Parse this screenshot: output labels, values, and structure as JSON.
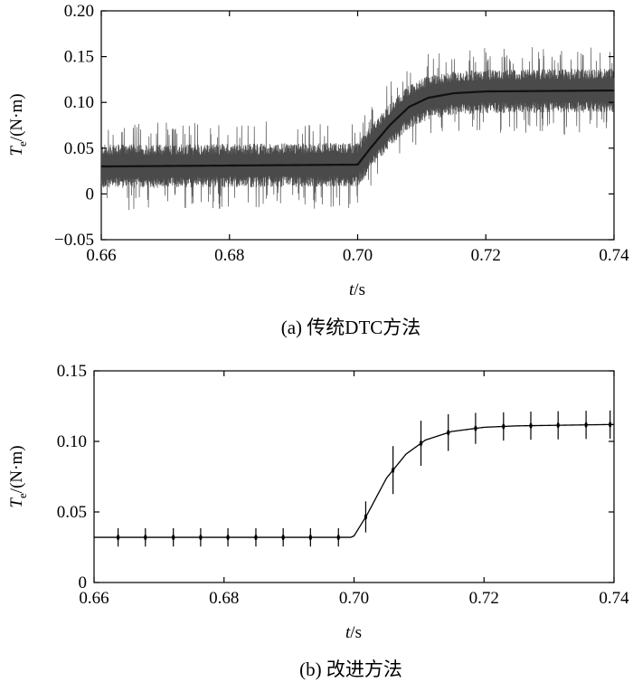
{
  "chart_data": [
    {
      "type": "line",
      "caption": "(a) 传统DTC方法",
      "xlabel": {
        "var": "t",
        "unit": "/s"
      },
      "ylabel": {
        "var": "T",
        "sub": "e",
        "unit": "/(N·m)"
      },
      "xlim": [
        0.66,
        0.74
      ],
      "ylim": [
        -0.05,
        0.2
      ],
      "x_ticks": [
        0.66,
        0.68,
        0.7,
        0.72,
        0.74
      ],
      "x_tick_labels": [
        "0.66",
        "0.68",
        "0.70",
        "0.72",
        "0.74"
      ],
      "y_ticks": [
        -0.05,
        0,
        0.05,
        0.1,
        0.15,
        0.2
      ],
      "y_tick_labels": [
        "−0.05",
        "0",
        "0.05",
        "0.10",
        "0.15",
        "0.20"
      ],
      "grid": false,
      "series": [
        {
          "style": "noisy torque (dense switching ripple, band ≈ ±0.02 with spikes ≈ ±0.045)",
          "mean_points": [
            [
              0.66,
              0.03
            ],
            [
              0.7,
              0.032
            ],
            [
              0.702,
              0.05
            ],
            [
              0.705,
              0.075
            ],
            [
              0.708,
              0.095
            ],
            [
              0.711,
              0.105
            ],
            [
              0.715,
              0.11
            ],
            [
              0.72,
              0.112
            ],
            [
              0.74,
              0.113
            ]
          ]
        }
      ]
    },
    {
      "type": "line",
      "caption": "(b) 改进方法",
      "xlabel": {
        "var": "t",
        "unit": "/s"
      },
      "ylabel": {
        "var": "T",
        "sub": "e",
        "unit": "/(N·m)"
      },
      "xlim": [
        0.66,
        0.74
      ],
      "ylim": [
        0,
        0.15
      ],
      "x_ticks": [
        0.66,
        0.68,
        0.7,
        0.72,
        0.74
      ],
      "x_tick_labels": [
        "0.66",
        "0.68",
        "0.70",
        "0.72",
        "0.74"
      ],
      "y_ticks": [
        0,
        0.05,
        0.1,
        0.15
      ],
      "y_tick_labels": [
        "0",
        "0.05",
        "0.10",
        "0.15"
      ],
      "grid": false,
      "series": [
        {
          "style": "smooth torque with periodic narrow spikes",
          "mean_points": [
            [
              0.66,
              0.032
            ],
            [
              0.6995,
              0.032
            ],
            [
              0.7,
              0.033
            ],
            [
              0.702,
              0.048
            ],
            [
              0.705,
              0.074
            ],
            [
              0.708,
              0.091
            ],
            [
              0.711,
              0.101
            ],
            [
              0.715,
              0.107
            ],
            [
              0.72,
              0.11
            ],
            [
              0.725,
              0.111
            ],
            [
              0.74,
              0.112
            ]
          ],
          "spike_times": [
            0.6637,
            0.6679,
            0.6722,
            0.6764,
            0.6806,
            0.6849,
            0.6891,
            0.6933,
            0.6976,
            0.7018,
            0.706,
            0.7103,
            0.7145,
            0.7187,
            0.723,
            0.7272,
            0.7314,
            0.7357,
            0.7394
          ],
          "spike_amplitudes": [
            0.0065,
            0.0065,
            0.0065,
            0.0065,
            0.0065,
            0.0065,
            0.0065,
            0.0065,
            0.0065,
            0.011,
            0.017,
            0.016,
            0.013,
            0.011,
            0.01,
            0.01,
            0.01,
            0.01,
            0.01
          ]
        }
      ]
    }
  ]
}
